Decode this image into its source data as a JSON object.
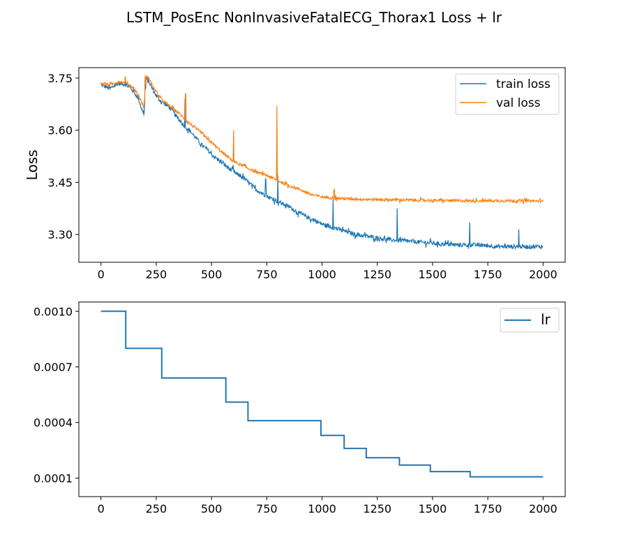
{
  "suptitle": "LSTM_PosEnc NonInvasiveFatalECG_Thorax1 Loss + lr",
  "colors": {
    "train": "#1f77b4",
    "val": "#ff7f0e",
    "lr": "#1f77b4",
    "axes": "#000000",
    "legend_border": "#cccccc"
  },
  "chart_data": [
    {
      "type": "line",
      "title": "",
      "xlabel": "",
      "ylabel": "Loss",
      "xlim": [
        -100,
        2100
      ],
      "ylim": [
        3.22,
        3.78
      ],
      "xticks": [
        0,
        250,
        500,
        750,
        1000,
        1250,
        1500,
        1750,
        2000
      ],
      "yticks": [
        3.3,
        3.45,
        3.6,
        3.75
      ],
      "ytick_labels": [
        "3.30",
        "3.45",
        "3.60",
        "3.75"
      ],
      "legend_position": "top-right",
      "grid": false,
      "series": [
        {
          "name": "train loss",
          "color_key": "train",
          "points": [
            [
              0,
              3.73
            ],
            [
              40,
              3.72
            ],
            [
              80,
              3.735
            ],
            [
              120,
              3.73
            ],
            [
              150,
              3.71
            ],
            [
              170,
              3.69
            ],
            [
              185,
              3.66
            ],
            [
              195,
              3.645
            ],
            [
              205,
              3.75
            ],
            [
              220,
              3.735
            ],
            [
              240,
              3.71
            ],
            [
              260,
              3.69
            ],
            [
              280,
              3.68
            ],
            [
              300,
              3.67
            ],
            [
              320,
              3.66
            ],
            [
              340,
              3.64
            ],
            [
              360,
              3.625
            ],
            [
              380,
              3.61
            ],
            [
              400,
              3.6
            ],
            [
              420,
              3.585
            ],
            [
              440,
              3.57
            ],
            [
              460,
              3.555
            ],
            [
              480,
              3.545
            ],
            [
              500,
              3.53
            ],
            [
              550,
              3.505
            ],
            [
              600,
              3.48
            ],
            [
              650,
              3.46
            ],
            [
              700,
              3.43
            ],
            [
              750,
              3.41
            ],
            [
              800,
              3.395
            ],
            [
              850,
              3.38
            ],
            [
              900,
              3.36
            ],
            [
              950,
              3.345
            ],
            [
              1000,
              3.33
            ],
            [
              1050,
              3.32
            ],
            [
              1100,
              3.31
            ],
            [
              1150,
              3.3
            ],
            [
              1200,
              3.295
            ],
            [
              1250,
              3.29
            ],
            [
              1300,
              3.285
            ],
            [
              1400,
              3.28
            ],
            [
              1500,
              3.275
            ],
            [
              1600,
              3.27
            ],
            [
              1700,
              3.27
            ],
            [
              1800,
              3.265
            ],
            [
              1900,
              3.265
            ],
            [
              2000,
              3.265
            ]
          ],
          "noise": 0.006,
          "spikes": [
            [
              110,
              3.755
            ],
            [
              200,
              3.755
            ],
            [
              380,
              3.69
            ],
            [
              598,
              3.5
            ],
            [
              745,
              3.46
            ],
            [
              800,
              3.47
            ],
            [
              1050,
              3.4
            ],
            [
              1340,
              3.375
            ],
            [
              1668,
              3.335
            ],
            [
              1890,
              3.315
            ]
          ]
        },
        {
          "name": "val loss",
          "color_key": "val",
          "points": [
            [
              0,
              3.735
            ],
            [
              40,
              3.73
            ],
            [
              80,
              3.74
            ],
            [
              120,
              3.735
            ],
            [
              150,
              3.72
            ],
            [
              170,
              3.7
            ],
            [
              185,
              3.68
            ],
            [
              195,
              3.665
            ],
            [
              205,
              3.755
            ],
            [
              220,
              3.745
            ],
            [
              240,
              3.72
            ],
            [
              260,
              3.7
            ],
            [
              280,
              3.685
            ],
            [
              300,
              3.675
            ],
            [
              320,
              3.665
            ],
            [
              340,
              3.655
            ],
            [
              360,
              3.645
            ],
            [
              380,
              3.63
            ],
            [
              400,
              3.62
            ],
            [
              420,
              3.61
            ],
            [
              440,
              3.6
            ],
            [
              460,
              3.59
            ],
            [
              480,
              3.575
            ],
            [
              500,
              3.565
            ],
            [
              550,
              3.535
            ],
            [
              600,
              3.51
            ],
            [
              650,
              3.495
            ],
            [
              700,
              3.48
            ],
            [
              750,
              3.47
            ],
            [
              800,
              3.455
            ],
            [
              850,
              3.44
            ],
            [
              900,
              3.43
            ],
            [
              950,
              3.415
            ],
            [
              1000,
              3.408
            ],
            [
              1050,
              3.405
            ],
            [
              1100,
              3.403
            ],
            [
              1200,
              3.401
            ],
            [
              1300,
              3.4
            ],
            [
              1400,
              3.399
            ],
            [
              1500,
              3.398
            ],
            [
              1600,
              3.397
            ],
            [
              1700,
              3.397
            ],
            [
              1800,
              3.397
            ],
            [
              1900,
              3.397
            ],
            [
              2000,
              3.396
            ]
          ],
          "noise": 0.004,
          "spikes": [
            [
              110,
              3.755
            ],
            [
              200,
              3.757
            ],
            [
              383,
              3.705
            ],
            [
              600,
              3.6
            ],
            [
              796,
              3.67
            ],
            [
              1055,
              3.43
            ]
          ]
        }
      ]
    },
    {
      "type": "line",
      "title": "",
      "xlabel": "",
      "ylabel": "",
      "xlim": [
        -100,
        2100
      ],
      "ylim": [
        0.0,
        0.00105
      ],
      "xticks": [
        0,
        250,
        500,
        750,
        1000,
        1250,
        1500,
        1750,
        2000
      ],
      "yticks": [
        0.0001,
        0.0004,
        0.0007,
        0.001
      ],
      "ytick_labels": [
        "0.0001",
        "0.0004",
        "0.0007",
        "0.0010"
      ],
      "legend_position": "top-right",
      "grid": false,
      "series": [
        {
          "name": "lr",
          "color_key": "lr",
          "step": true,
          "points": [
            [
              0,
              0.001
            ],
            [
              112,
              0.0008
            ],
            [
              275,
              0.00064
            ],
            [
              565,
              0.00051
            ],
            [
              665,
              0.00041
            ],
            [
              995,
              0.00033
            ],
            [
              1100,
              0.00026
            ],
            [
              1200,
              0.00021
            ],
            [
              1350,
              0.00017
            ],
            [
              1490,
              0.000135
            ],
            [
              1670,
              0.000107
            ],
            [
              2000,
              0.000107
            ]
          ]
        }
      ]
    }
  ]
}
